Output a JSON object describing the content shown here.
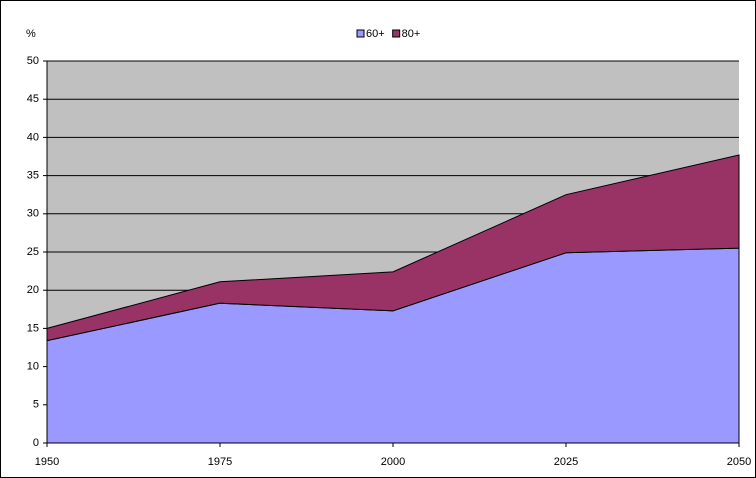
{
  "chart_data": {
    "type": "stacked-area",
    "y_label": "%",
    "x": [
      1950,
      1975,
      2000,
      2025,
      2050
    ],
    "series": [
      {
        "name": "60+",
        "color": "#9999ff",
        "values": [
          13.4,
          18.3,
          17.3,
          24.9,
          25.5
        ]
      },
      {
        "name": "80+",
        "color": "#993366",
        "values": [
          1.6,
          2.8,
          5.1,
          7.6,
          12.2
        ]
      }
    ],
    "xlim": [
      1950,
      2050
    ],
    "xticks": [
      1950,
      1975,
      2000,
      2025,
      2050
    ],
    "ylim": [
      0,
      50
    ],
    "yticks": [
      0,
      5,
      10,
      15,
      20,
      25,
      30,
      35,
      40,
      45,
      50
    ],
    "grid": true,
    "plot_background": "#c0c0c0",
    "legend": "top"
  }
}
